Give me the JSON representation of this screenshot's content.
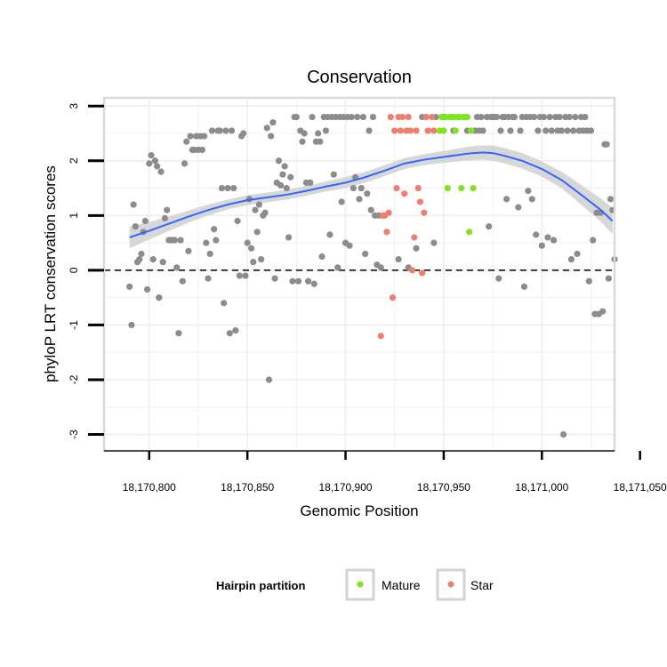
{
  "chart_data": {
    "type": "scatter",
    "title": "Conservation",
    "xlabel": "Genomic Position",
    "ylabel": "phyloP LRT conservation scores",
    "xlim": [
      18170777,
      18171037
    ],
    "ylim": [
      -3.3,
      3.15
    ],
    "x_ticks": [
      18170800,
      18170850,
      18170900,
      18170950,
      18171000,
      18171050
    ],
    "x_tick_labels": [
      "18,170,800",
      "18,170,850",
      "18,170,900",
      "18,170,950",
      "18,171,000",
      "18,171,050"
    ],
    "y_ticks": [
      -3,
      -2,
      -1,
      0,
      1,
      2,
      3
    ],
    "y_tick_labels": [
      "-3",
      "-2",
      "-1",
      "0",
      "1",
      "2",
      "3"
    ],
    "reference_line": 0,
    "legend": {
      "title": "Hairpin partition",
      "entries": [
        {
          "label": "Mature",
          "color": "#7FE61E"
        },
        {
          "label": "Star",
          "color": "#F07E6E"
        }
      ]
    },
    "colors": {
      "other": "#8C8C8C",
      "mature": "#7FE61E",
      "star": "#F07E6E",
      "smooth": "#3366FF",
      "band": "#D3D3D3",
      "panel_border": "#D9D9D9",
      "grid": "#EEEEEE"
    },
    "series": [
      {
        "name": "Other",
        "points": [
          [
            18170790,
            -0.3
          ],
          [
            18170791,
            -1.0
          ],
          [
            18170792,
            1.2
          ],
          [
            18170793,
            0.8
          ],
          [
            18170794,
            0.15
          ],
          [
            18170795,
            0.2
          ],
          [
            18170796,
            0.3
          ],
          [
            18170797,
            0.7
          ],
          [
            18170798,
            0.9
          ],
          [
            18170799,
            -0.35
          ],
          [
            18170800,
            1.95
          ],
          [
            18170801,
            2.1
          ],
          [
            18170802,
            0.2
          ],
          [
            18170803,
            2.0
          ],
          [
            18170804,
            1.9
          ],
          [
            18170805,
            -0.5
          ],
          [
            18170806,
            1.8
          ],
          [
            18170807,
            0.15
          ],
          [
            18170808,
            0.95
          ],
          [
            18170809,
            1.1
          ],
          [
            18170810,
            0.55
          ],
          [
            18170811,
            0.55
          ],
          [
            18170812,
            0.55
          ],
          [
            18170813,
            0.55
          ],
          [
            18170814,
            0.05
          ],
          [
            18170815,
            -1.15
          ],
          [
            18170816,
            0.55
          ],
          [
            18170817,
            -0.2
          ],
          [
            18170818,
            1.95
          ],
          [
            18170819,
            2.35
          ],
          [
            18170820,
            0.35
          ],
          [
            18170821,
            2.45
          ],
          [
            18170822,
            2.2
          ],
          [
            18170823,
            2.2
          ],
          [
            18170824,
            2.45
          ],
          [
            18170825,
            2.2
          ],
          [
            18170826,
            2.45
          ],
          [
            18170827,
            2.2
          ],
          [
            18170828,
            2.45
          ],
          [
            18170829,
            0.5
          ],
          [
            18170830,
            -0.15
          ],
          [
            18170831,
            0.3
          ],
          [
            18170832,
            2.55
          ],
          [
            18170833,
            0.75
          ],
          [
            18170834,
            0.55
          ],
          [
            18170835,
            2.55
          ],
          [
            18170836,
            2.55
          ],
          [
            18170837,
            1.5
          ],
          [
            18170838,
            -0.6
          ],
          [
            18170839,
            2.55
          ],
          [
            18170840,
            1.5
          ],
          [
            18170841,
            -1.15
          ],
          [
            18170842,
            2.55
          ],
          [
            18170843,
            1.5
          ],
          [
            18170844,
            -1.1
          ],
          [
            18170845,
            0.9
          ],
          [
            18170846,
            -0.1
          ],
          [
            18170847,
            2.45
          ],
          [
            18170848,
            2.5
          ],
          [
            18170849,
            -0.1
          ],
          [
            18170850,
            0.5
          ],
          [
            18170851,
            1.3
          ],
          [
            18170852,
            0.4
          ],
          [
            18170853,
            0.15
          ],
          [
            18170854,
            1.1
          ],
          [
            18170855,
            0.7
          ],
          [
            18170856,
            1.2
          ],
          [
            18170857,
            0.2
          ],
          [
            18170858,
            1.0
          ],
          [
            18170859,
            1.05
          ],
          [
            18170860,
            2.6
          ],
          [
            18170861,
            -2.0
          ],
          [
            18170862,
            2.45
          ],
          [
            18170863,
            2.7
          ],
          [
            18170864,
            -0.15
          ],
          [
            18170865,
            1.6
          ],
          [
            18170866,
            2.0
          ],
          [
            18170867,
            1.55
          ],
          [
            18170868,
            1.75
          ],
          [
            18170869,
            1.9
          ],
          [
            18170870,
            1.5
          ],
          [
            18170871,
            0.6
          ],
          [
            18170872,
            1.7
          ],
          [
            18170873,
            -0.2
          ],
          [
            18170874,
            2.8
          ],
          [
            18170875,
            2.8
          ],
          [
            18170876,
            -0.2
          ],
          [
            18170877,
            2.55
          ],
          [
            18170878,
            2.35
          ],
          [
            18170879,
            2.5
          ],
          [
            18170880,
            1.6
          ],
          [
            18170881,
            -0.2
          ],
          [
            18170882,
            1.6
          ],
          [
            18170883,
            2.8
          ],
          [
            18170884,
            -0.25
          ],
          [
            18170885,
            2.35
          ],
          [
            18170886,
            2.5
          ],
          [
            18170887,
            2.35
          ],
          [
            18170888,
            0.25
          ],
          [
            18170889,
            2.8
          ],
          [
            18170890,
            2.55
          ],
          [
            18170891,
            2.8
          ],
          [
            18170892,
            0.65
          ],
          [
            18170893,
            2.8
          ],
          [
            18170894,
            1.75
          ],
          [
            18170895,
            2.8
          ],
          [
            18170896,
            0.05
          ],
          [
            18170897,
            2.8
          ],
          [
            18170898,
            1.25
          ],
          [
            18170899,
            2.8
          ],
          [
            18170900,
            0.5
          ],
          [
            18170901,
            2.8
          ],
          [
            18170902,
            0.45
          ],
          [
            18170903,
            2.8
          ],
          [
            18170904,
            1.5
          ],
          [
            18170905,
            1.7
          ],
          [
            18170906,
            2.8
          ],
          [
            18170907,
            1.3
          ],
          [
            18170908,
            1.5
          ],
          [
            18170909,
            2.8
          ],
          [
            18170910,
            0.3
          ],
          [
            18170911,
            1.4
          ],
          [
            18170912,
            2.55
          ],
          [
            18170913,
            1.1
          ],
          [
            18170914,
            2.8
          ],
          [
            18170915,
            1.0
          ],
          [
            18170916,
            0.1
          ],
          [
            18170917,
            1.0
          ],
          [
            18170918,
            0.05
          ],
          [
            18170927,
            0.2
          ],
          [
            18170932,
            0.05
          ],
          [
            18170936,
            0.4
          ],
          [
            18170939,
            2.8
          ],
          [
            18170941,
            2.8
          ],
          [
            18170942,
            2.55
          ],
          [
            18170945,
            0.5
          ],
          [
            18170946,
            2.8
          ],
          [
            18170950,
            2.8
          ],
          [
            18170955,
            2.55
          ],
          [
            18170962,
            2.55
          ],
          [
            18170966,
            2.55
          ],
          [
            18170967,
            2.8
          ],
          [
            18170968,
            2.55
          ],
          [
            18170969,
            2.8
          ],
          [
            18170970,
            2.55
          ],
          [
            18170972,
            2.8
          ],
          [
            18170973,
            0.8
          ],
          [
            18170974,
            2.8
          ],
          [
            18170975,
            2.8
          ],
          [
            18170976,
            2.8
          ],
          [
            18170977,
            2.8
          ],
          [
            18170978,
            -0.15
          ],
          [
            18170979,
            2.55
          ],
          [
            18170980,
            2.8
          ],
          [
            18170981,
            2.8
          ],
          [
            18170982,
            1.3
          ],
          [
            18170983,
            2.8
          ],
          [
            18170984,
            2.55
          ],
          [
            18170985,
            2.8
          ],
          [
            18170986,
            2.8
          ],
          [
            18170988,
            1.15
          ],
          [
            18170989,
            2.55
          ],
          [
            18170990,
            2.8
          ],
          [
            18170991,
            -0.3
          ],
          [
            18170992,
            2.8
          ],
          [
            18170993,
            1.45
          ],
          [
            18170994,
            2.8
          ],
          [
            18170995,
            1.3
          ],
          [
            18170996,
            2.8
          ],
          [
            18170997,
            0.65
          ],
          [
            18170998,
            2.55
          ],
          [
            18170999,
            2.8
          ],
          [
            18171000,
            0.45
          ],
          [
            18171001,
            2.8
          ],
          [
            18171002,
            2.55
          ],
          [
            18171003,
            0.6
          ],
          [
            18171004,
            2.8
          ],
          [
            18171005,
            2.55
          ],
          [
            18171006,
            0.55
          ],
          [
            18171007,
            2.8
          ],
          [
            18171008,
            2.55
          ],
          [
            18171009,
            2.8
          ],
          [
            18171010,
            2.55
          ],
          [
            18171011,
            -3.0
          ],
          [
            18171012,
            2.8
          ],
          [
            18171013,
            2.55
          ],
          [
            18171014,
            2.8
          ],
          [
            18171015,
            0.2
          ],
          [
            18171016,
            2.55
          ],
          [
            18171017,
            2.8
          ],
          [
            18171018,
            0.3
          ],
          [
            18171019,
            2.55
          ],
          [
            18171020,
            2.8
          ],
          [
            18171021,
            2.55
          ],
          [
            18171022,
            2.8
          ],
          [
            18171023,
            2.55
          ],
          [
            18171024,
            -0.2
          ],
          [
            18171025,
            2.55
          ],
          [
            18171026,
            0.55
          ],
          [
            18171027,
            -0.8
          ],
          [
            18171028,
            1.05
          ],
          [
            18171029,
            -0.8
          ],
          [
            18171030,
            1.05
          ],
          [
            18171031,
            -0.75
          ],
          [
            18171032,
            2.3
          ],
          [
            18171033,
            2.3
          ],
          [
            18171034,
            -0.15
          ],
          [
            18171035,
            1.3
          ],
          [
            18171036,
            1.1
          ],
          [
            18171037,
            0.2
          ]
        ]
      },
      {
        "name": "Star",
        "points": [
          [
            18170918,
            -1.2
          ],
          [
            18170919,
            1.0
          ],
          [
            18170920,
            1.0
          ],
          [
            18170921,
            0.7
          ],
          [
            18170922,
            1.05
          ],
          [
            18170923,
            2.8
          ],
          [
            18170924,
            -0.5
          ],
          [
            18170925,
            2.55
          ],
          [
            18170926,
            1.5
          ],
          [
            18170927,
            2.8
          ],
          [
            18170928,
            2.55
          ],
          [
            18170929,
            2.8
          ],
          [
            18170930,
            1.4
          ],
          [
            18170931,
            2.55
          ],
          [
            18170932,
            2.8
          ],
          [
            18170933,
            2.55
          ],
          [
            18170934,
            0.0
          ],
          [
            18170935,
            0.6
          ],
          [
            18170936,
            2.55
          ],
          [
            18170937,
            1.5
          ],
          [
            18170938,
            1.25
          ],
          [
            18170939,
            -0.05
          ],
          [
            18170940,
            1.05
          ],
          [
            18170941,
            2.8
          ],
          [
            18170942,
            2.55
          ],
          [
            18170944,
            2.8
          ],
          [
            18170945,
            2.55
          ]
        ]
      },
      {
        "name": "Mature",
        "points": [
          [
            18170948,
            2.55
          ],
          [
            18170949,
            2.8
          ],
          [
            18170950,
            2.55
          ],
          [
            18170951,
            2.8
          ],
          [
            18170952,
            1.5
          ],
          [
            18170953,
            2.8
          ],
          [
            18170954,
            2.8
          ],
          [
            18170955,
            2.8
          ],
          [
            18170956,
            2.55
          ],
          [
            18170957,
            2.8
          ],
          [
            18170958,
            2.8
          ],
          [
            18170959,
            1.5
          ],
          [
            18170960,
            2.8
          ],
          [
            18170961,
            2.8
          ],
          [
            18170962,
            2.8
          ],
          [
            18170963,
            0.7
          ],
          [
            18170964,
            2.55
          ],
          [
            18170965,
            1.5
          ]
        ]
      }
    ],
    "smooth_curve": {
      "x": [
        18170790,
        18170800,
        18170810,
        18170820,
        18170830,
        18170840,
        18170850,
        18170860,
        18170870,
        18170880,
        18170890,
        18170900,
        18170910,
        18170920,
        18170930,
        18170940,
        18170950,
        18170960,
        18170965,
        18170970,
        18170975,
        18170980,
        18170990,
        18171000,
        18171010,
        18171020,
        18171030,
        18171036
      ],
      "y": [
        0.6,
        0.72,
        0.85,
        0.98,
        1.1,
        1.2,
        1.28,
        1.33,
        1.38,
        1.45,
        1.53,
        1.6,
        1.7,
        1.82,
        1.95,
        2.02,
        2.07,
        2.12,
        2.14,
        2.15,
        2.14,
        2.1,
        2.0,
        1.85,
        1.65,
        1.38,
        1.1,
        0.9
      ],
      "ci_half_width": [
        0.2,
        0.16,
        0.13,
        0.11,
        0.1,
        0.09,
        0.09,
        0.09,
        0.09,
        0.09,
        0.09,
        0.1,
        0.1,
        0.1,
        0.1,
        0.1,
        0.11,
        0.12,
        0.13,
        0.13,
        0.14,
        0.14,
        0.14,
        0.14,
        0.15,
        0.18,
        0.21,
        0.24
      ]
    }
  }
}
